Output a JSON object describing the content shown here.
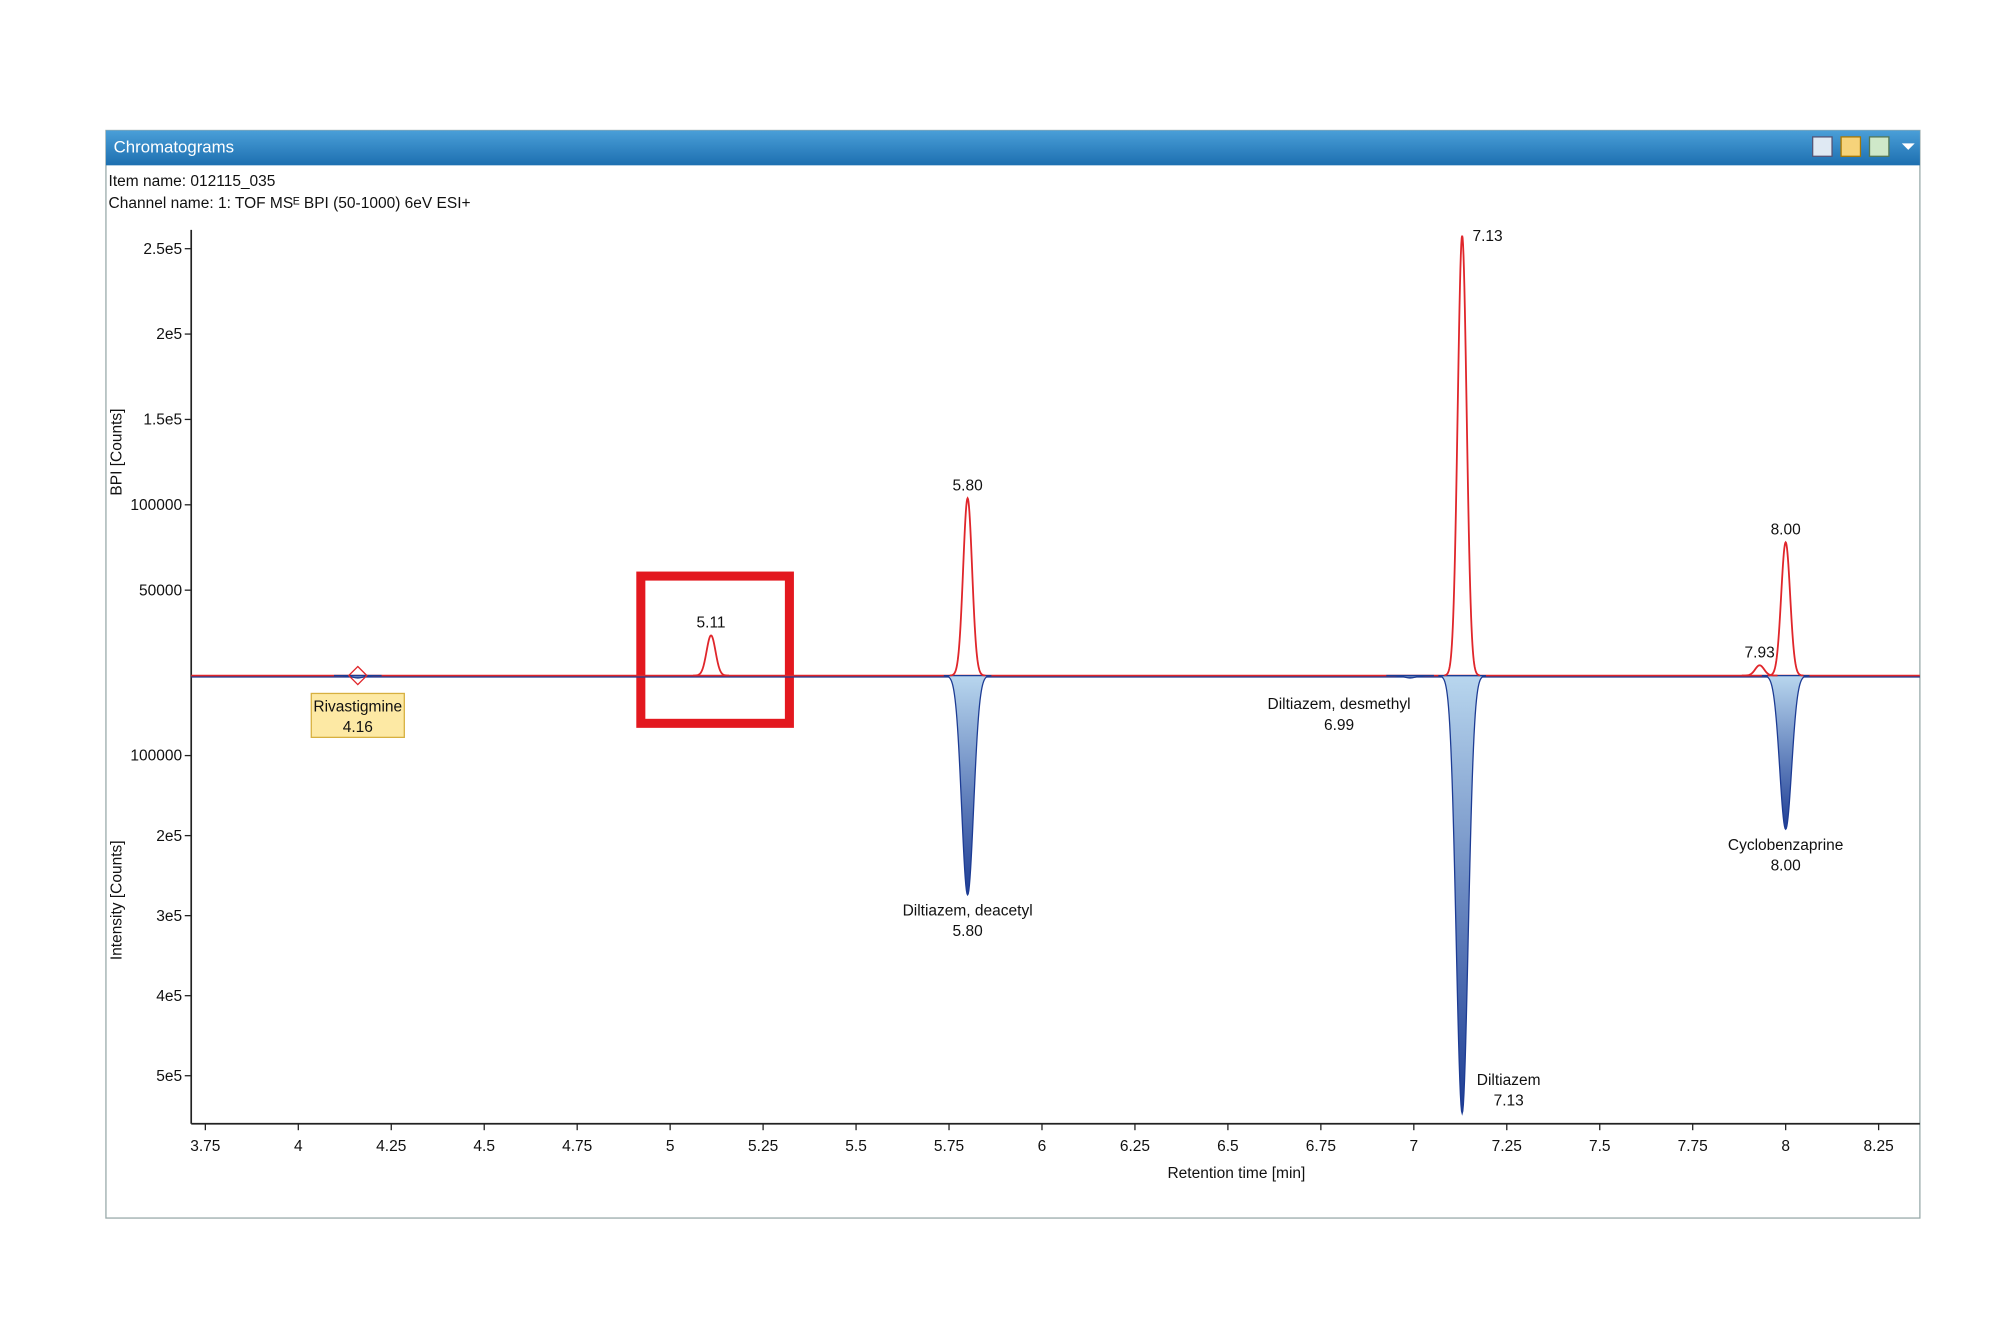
{
  "window": {
    "title": "Chromatograms",
    "item_name": "Item name: 012115_035",
    "channel_name": "Channel name: 1: TOF MSᴱ BPI (50-1000) 6eV ESI+"
  },
  "chart_data": {
    "type": "mirror",
    "x_label": "Retention time [min]",
    "y_label": "BPI [Counts]",
    "y2_label": "Intensity [Counts]",
    "xlim": [
      3.712,
      8.361
    ],
    "xticks": [
      3.75,
      4,
      4.25,
      4.5,
      4.75,
      5,
      5.25,
      5.5,
      5.75,
      6,
      6.25,
      6.5,
      6.75,
      7,
      7.25,
      7.5,
      7.75,
      8,
      8.25
    ],
    "ylim": [
      0,
      261000
    ],
    "yticks": [
      50000,
      100000,
      {
        "value": 150000,
        "label": "1.5e5"
      },
      {
        "value": 200000,
        "label": "2e5"
      },
      {
        "value": 250000,
        "label": "2.5e5"
      }
    ],
    "y2lim": [
      0,
      560000
    ],
    "y2ticks": [
      100000,
      {
        "value": 200000,
        "label": "2e5"
      },
      {
        "value": 300000,
        "label": "3e5"
      },
      {
        "value": 400000,
        "label": "4e5"
      },
      {
        "value": 500000,
        "label": "5e5"
      }
    ],
    "top_color": "#e0262b",
    "bottom_color": "#1d3c94",
    "top_peaks": {
      "x": [
        5.11,
        5.8,
        7.13,
        7.93,
        8.0
      ],
      "x_labels": [
        "5.11",
        "5.80",
        "7.13",
        "7.93",
        "8.00"
      ],
      "values": [
        23500,
        103800,
        257600,
        6000,
        78000
      ]
    },
    "bottom_peaks": {
      "x": [
        4.16,
        5.8,
        6.99,
        7.13,
        8.0
      ],
      "names": [
        "Rivastigmine",
        "Diltiazem, deacetyl",
        "Diltiazem, desmethyl",
        "Diltiazem",
        "Cyclobenzaprine"
      ],
      "x_labels": [
        "4.16",
        "5.80",
        "6.99",
        "7.13",
        "8.00"
      ],
      "values": [
        3000,
        274000,
        3000,
        547000,
        192000
      ]
    }
  }
}
